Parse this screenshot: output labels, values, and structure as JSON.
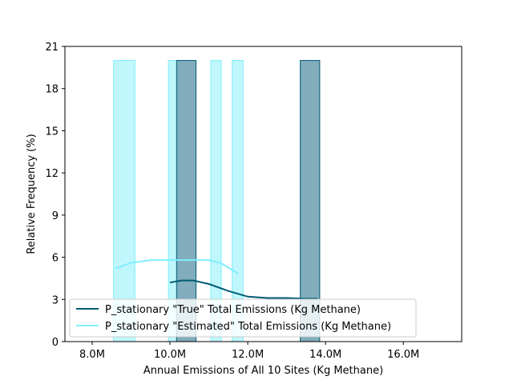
{
  "chart_data": {
    "type": "bar",
    "subtype": "histogram_with_kde",
    "xlabel": "Annual Emissions of All 10 Sites (Kg Methane)",
    "ylabel": "Relative Frequency (%)",
    "xlim": [
      7.3,
      17.5
    ],
    "ylim": [
      0,
      21
    ],
    "x_unit_note": "millions of Kg Methane",
    "x_ticks": [
      8,
      10,
      12,
      14,
      16
    ],
    "x_tick_labels": [
      "8.0M",
      "10.0M",
      "12.0M",
      "14.0M",
      "16.0M"
    ],
    "y_ticks": [
      0,
      3,
      6,
      9,
      12,
      15,
      18,
      21
    ],
    "y_tick_labels": [
      "0",
      "3",
      "6",
      "9",
      "12",
      "15",
      "18",
      "21"
    ],
    "grid": false,
    "legend_position": "lower-left",
    "series": [
      {
        "name": "P_stationary \"True\" Total Emissions (Kg Methane)",
        "color": "#005b74",
        "fill": "#7aa9b8",
        "bins": [
          {
            "x0": 10.17,
            "x1": 10.67,
            "value": 20
          },
          {
            "x0": 13.35,
            "x1": 13.85,
            "value": 20
          }
        ],
        "kde": [
          [
            10.0,
            4.2
          ],
          [
            10.3,
            4.35
          ],
          [
            10.6,
            4.35
          ],
          [
            11.0,
            4.1
          ],
          [
            11.5,
            3.6
          ],
          [
            12.0,
            3.2
          ],
          [
            12.5,
            3.1
          ],
          [
            13.0,
            3.1
          ],
          [
            13.5,
            3.05
          ],
          [
            13.8,
            3.05
          ]
        ]
      },
      {
        "name": "P_stationary \"Estimated\" Total Emissions (Kg Methane)",
        "color": "#7fefff",
        "fill": "#bff7fc",
        "bins": [
          {
            "x0": 8.55,
            "x1": 9.1,
            "value": 20
          },
          {
            "x0": 9.96,
            "x1": 10.24,
            "value": 20
          },
          {
            "x0": 11.05,
            "x1": 11.32,
            "value": 20
          },
          {
            "x0": 11.6,
            "x1": 11.88,
            "value": 20
          }
        ],
        "kde": [
          [
            8.6,
            5.2
          ],
          [
            9.0,
            5.6
          ],
          [
            9.5,
            5.8
          ],
          [
            10.0,
            5.8
          ],
          [
            10.5,
            5.8
          ],
          [
            11.0,
            5.8
          ],
          [
            11.3,
            5.6
          ],
          [
            11.6,
            5.1
          ],
          [
            11.75,
            4.85
          ]
        ]
      }
    ]
  }
}
